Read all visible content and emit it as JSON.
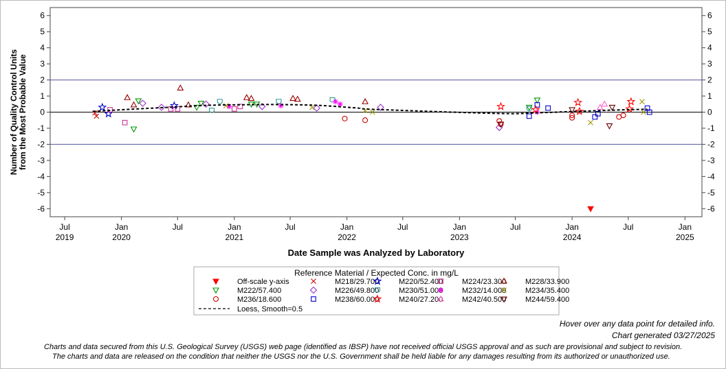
{
  "chart_data": {
    "type": "scatter",
    "ylabel_line1": "Number of Quality Control Units",
    "ylabel_line2": "from the Most Probable Value",
    "xlabel": "Date Sample was Analyzed by Laboratory",
    "ylim": [
      -6.5,
      6.5
    ],
    "xlim": [
      "2019-05-15",
      "2025-02-25"
    ],
    "y_ticks": [
      -6,
      -5,
      -4,
      -3,
      -2,
      -1,
      0,
      1,
      2,
      3,
      4,
      5,
      6
    ],
    "x_ticks": [
      {
        "date": "2019-07-01",
        "label1": "Jul",
        "label2": "2019"
      },
      {
        "date": "2020-01-01",
        "label1": "Jan",
        "label2": "2020"
      },
      {
        "date": "2020-07-01",
        "label1": "Jul",
        "label2": ""
      },
      {
        "date": "2021-01-01",
        "label1": "Jan",
        "label2": "2021"
      },
      {
        "date": "2021-07-01",
        "label1": "Jul",
        "label2": ""
      },
      {
        "date": "2022-01-01",
        "label1": "Jan",
        "label2": "2022"
      },
      {
        "date": "2022-07-01",
        "label1": "Jul",
        "label2": ""
      },
      {
        "date": "2023-01-01",
        "label1": "Jan",
        "label2": "2023"
      },
      {
        "date": "2023-07-01",
        "label1": "Jul",
        "label2": ""
      },
      {
        "date": "2024-01-01",
        "label1": "Jan",
        "label2": "2024"
      },
      {
        "date": "2024-07-01",
        "label1": "Jul",
        "label2": ""
      },
      {
        "date": "2025-01-01",
        "label1": "Jan",
        "label2": "2025"
      }
    ],
    "reference_lines": [
      2,
      -2
    ],
    "zero_line": 0,
    "legend_title": "Reference Material / Expected Conc. in mg/L",
    "legend_placement": "bottom",
    "series": [
      {
        "name": "Off-scale y-axis",
        "marker": "filled-triangle-down",
        "color": "#ff0000",
        "points": [
          [
            "2024-03-01",
            -6.0
          ]
        ]
      },
      {
        "name": "M218/29.700",
        "marker": "x",
        "color": "#cc0000",
        "points": [
          [
            "2019-10-07",
            -0.05
          ],
          [
            "2019-10-12",
            -0.25
          ]
        ]
      },
      {
        "name": "M220/52.400",
        "marker": "star",
        "color": "#0000cc",
        "points": [
          [
            "2019-10-31",
            0.3
          ],
          [
            "2019-11-20",
            -0.1
          ],
          [
            "2020-06-20",
            0.4
          ]
        ]
      },
      {
        "name": "M224/23.300",
        "marker": "square",
        "color": "#cc3399",
        "points": [
          [
            "2019-11-25",
            0.15
          ],
          [
            "2020-01-12",
            -0.65
          ],
          [
            "2020-06-09",
            0.2
          ],
          [
            "2020-07-01",
            0.2
          ],
          [
            "2021-01-01",
            0.2
          ],
          [
            "2021-01-20",
            0.35
          ]
        ]
      },
      {
        "name": "M228/33.900",
        "marker": "triangle-up",
        "color": "#990000",
        "points": [
          [
            "2020-01-20",
            0.9
          ],
          [
            "2020-02-10",
            0.45
          ],
          [
            "2020-07-10",
            1.5
          ],
          [
            "2020-08-05",
            0.45
          ],
          [
            "2021-02-10",
            0.9
          ],
          [
            "2021-02-25",
            0.85
          ],
          [
            "2021-07-10",
            0.85
          ],
          [
            "2021-07-25",
            0.8
          ],
          [
            "2022-03-01",
            0.65
          ]
        ]
      },
      {
        "name": "M222/57.400",
        "marker": "triangle-down",
        "color": "#009900",
        "points": [
          [
            "2020-02-10",
            -1.05
          ],
          [
            "2020-02-25",
            0.7
          ],
          [
            "2020-09-01",
            0.3
          ],
          [
            "2020-09-15",
            0.55
          ],
          [
            "2021-02-25",
            0.5
          ],
          [
            "2021-03-15",
            0.5
          ],
          [
            "2023-08-15",
            0.3
          ],
          [
            "2023-09-10",
            0.75
          ]
        ]
      },
      {
        "name": "M226/49.800",
        "marker": "diamond",
        "color": "#9933cc",
        "points": [
          [
            "2020-03-10",
            0.55
          ],
          [
            "2020-05-10",
            0.3
          ],
          [
            "2020-10-01",
            0.5
          ],
          [
            "2021-04-01",
            0.35
          ],
          [
            "2021-09-25",
            0.25
          ],
          [
            "2022-04-20",
            0.3
          ],
          [
            "2023-05-10",
            -0.95
          ]
        ]
      },
      {
        "name": "M230/51.000",
        "marker": "shield",
        "color": "#339999",
        "points": [
          [
            "2020-10-20",
            0.1
          ],
          [
            "2020-11-15",
            0.65
          ],
          [
            "2021-05-25",
            0.65
          ],
          [
            "2021-11-15",
            0.75
          ],
          [
            "2023-08-15",
            0.2
          ]
        ]
      },
      {
        "name": "M232/14.000",
        "marker": "asterisk",
        "color": "#ff00ff",
        "points": [
          [
            "2020-12-15",
            0.35
          ],
          [
            "2021-06-01",
            0.4
          ],
          [
            "2021-11-25",
            0.65
          ],
          [
            "2021-12-10",
            0.5
          ],
          [
            "2023-09-10",
            0.0
          ]
        ]
      },
      {
        "name": "M234/35.400",
        "marker": "x",
        "color": "#999900",
        "points": [
          [
            "2020-12-05",
            0.4
          ],
          [
            "2021-09-10",
            0.3
          ],
          [
            "2022-03-01",
            0.1
          ],
          [
            "2022-03-25",
            0.0
          ],
          [
            "2024-03-01",
            -0.65
          ],
          [
            "2024-08-15",
            0.65
          ],
          [
            "2024-08-20",
            0.0
          ]
        ]
      },
      {
        "name": "M236/18.600",
        "marker": "circle",
        "color": "#cc0000",
        "points": [
          [
            "2021-12-25",
            -0.4
          ],
          [
            "2022-03-01",
            -0.5
          ],
          [
            "2023-05-10",
            -0.55
          ],
          [
            "2023-05-15",
            -0.75
          ],
          [
            "2024-01-01",
            -0.2
          ],
          [
            "2024-01-01",
            -0.35
          ],
          [
            "2024-06-01",
            -0.3
          ],
          [
            "2024-06-15",
            -0.2
          ]
        ]
      },
      {
        "name": "M238/60.000",
        "marker": "square",
        "color": "#0000cc",
        "points": [
          [
            "2023-08-15",
            -0.25
          ],
          [
            "2023-09-10",
            0.45
          ],
          [
            "2023-10-15",
            0.25
          ],
          [
            "2024-03-15",
            -0.3
          ],
          [
            "2024-03-25",
            -0.1
          ],
          [
            "2024-09-01",
            0.25
          ],
          [
            "2024-09-08",
            0.0
          ]
        ]
      },
      {
        "name": "M240/27.200",
        "marker": "star",
        "color": "#ff0000",
        "points": [
          [
            "2023-05-15",
            0.35
          ],
          [
            "2023-09-05",
            0.15
          ],
          [
            "2024-01-20",
            0.6
          ],
          [
            "2024-01-25",
            0.05
          ],
          [
            "2024-07-05",
            0.2
          ],
          [
            "2024-07-10",
            0.65
          ]
        ]
      },
      {
        "name": "M242/40.500",
        "marker": "triangle-up",
        "color": "#ff66cc",
        "points": [
          [
            "2024-04-01",
            0.3
          ],
          [
            "2024-04-15",
            0.5
          ]
        ]
      },
      {
        "name": "M244/59.400",
        "marker": "triangle-down",
        "color": "#660000",
        "points": [
          [
            "2023-05-15",
            -0.75
          ],
          [
            "2024-01-01",
            0.15
          ],
          [
            "2024-05-01",
            -0.85
          ],
          [
            "2024-05-10",
            0.3
          ]
        ]
      }
    ],
    "loess": {
      "name": "Loess, Smooth=0.5",
      "points": [
        [
          "2019-10-01",
          0.05
        ],
        [
          "2020-02-01",
          0.18
        ],
        [
          "2020-06-01",
          0.3
        ],
        [
          "2020-10-01",
          0.42
        ],
        [
          "2021-02-01",
          0.46
        ],
        [
          "2021-06-01",
          0.47
        ],
        [
          "2021-10-01",
          0.42
        ],
        [
          "2022-02-01",
          0.26
        ],
        [
          "2022-04-01",
          0.17
        ],
        [
          "2023-05-01",
          -0.08
        ],
        [
          "2023-09-01",
          -0.05
        ],
        [
          "2024-01-01",
          0.04
        ],
        [
          "2024-05-01",
          0.12
        ],
        [
          "2024-09-01",
          0.18
        ]
      ]
    }
  },
  "notes": {
    "hover": "Hover over any data point for detailed info.",
    "generated": "Chart generated 03/27/2025",
    "disclaimer1": "Charts and data secured from this U.S. Geological Survey (USGS) web page (identified as IBSP) have not received official USGS approval and as such are provisional and subject to revision.",
    "disclaimer2": "The charts and data are released on the condition that neither the USGS nor the U.S. Government shall be held liable for any damages resulting from its authorized or unauthorized use."
  }
}
